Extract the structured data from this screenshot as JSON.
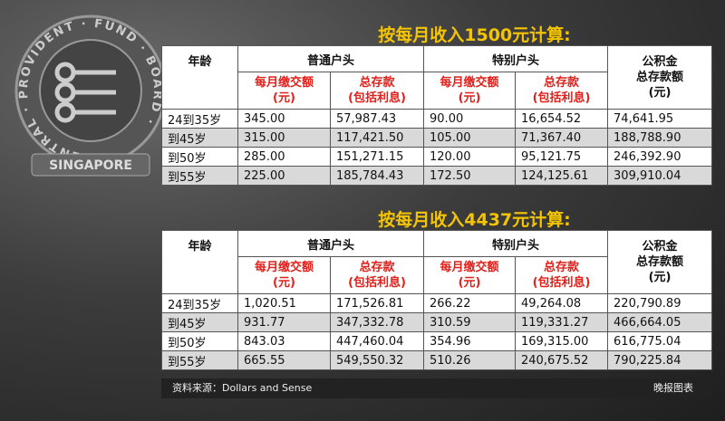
{
  "logo": {
    "ring": "CENTRAL · PROVIDENT · FUND · BOARD ·",
    "banner": "SINGAPORE"
  },
  "tables": [
    {
      "title": "按每月收入1500元计算:",
      "columns": [
        "年龄",
        "普通户头",
        "特别户头",
        [
          "公积金",
          "总存款额",
          "(元)"
        ]
      ],
      "subcolumns": [
        [
          "每月缴交额",
          "(元)"
        ],
        [
          "总存款",
          "(包括利息)"
        ],
        [
          "每月缴交额",
          "(元)"
        ],
        [
          "总存款",
          "(包括利息)"
        ]
      ],
      "rows": [
        [
          "24到35岁",
          "345.00",
          "57,987.43",
          "90.00",
          "16,654.52",
          "74,641.95"
        ],
        [
          "到45岁",
          "315.00",
          "117,421.50",
          "105.00",
          "71,367.40",
          "188,788.90"
        ],
        [
          "到50岁",
          "285.00",
          "151,271.15",
          "120.00",
          "95,121.75",
          "246,392.90"
        ],
        [
          "到55岁",
          "225.00",
          "185,784.43",
          "172.50",
          "124,125.61",
          "309,910.04"
        ]
      ]
    },
    {
      "title": "按每月收入4437元计算:",
      "columns": [
        "年龄",
        "普通户头",
        "特别户头",
        [
          "公积金",
          "总存款额",
          "(元)"
        ]
      ],
      "subcolumns": [
        [
          "每月缴交额",
          "(元)"
        ],
        [
          "总存款",
          "(包括利息)"
        ],
        [
          "每月缴交额",
          "(元)"
        ],
        [
          "总存款",
          "(包括利息)"
        ]
      ],
      "rows": [
        [
          "24到35岁",
          "1,020.51",
          "171,526.81",
          "266.22",
          "49,264.08",
          "220,790.89"
        ],
        [
          "到45岁",
          "931.77",
          "347,332.78",
          "310.59",
          "119,331.27",
          "466,664.05"
        ],
        [
          "到50岁",
          "843.03",
          "447,460.04",
          "354.96",
          "169,315.00",
          "616,775.04"
        ],
        [
          "到55岁",
          "665.55",
          "549,550.32",
          "510.26",
          "240,675.52",
          "790,225.84"
        ]
      ]
    }
  ],
  "footer": {
    "source": "资料来源：Dollars and Sense",
    "credit": "晚报图表"
  }
}
